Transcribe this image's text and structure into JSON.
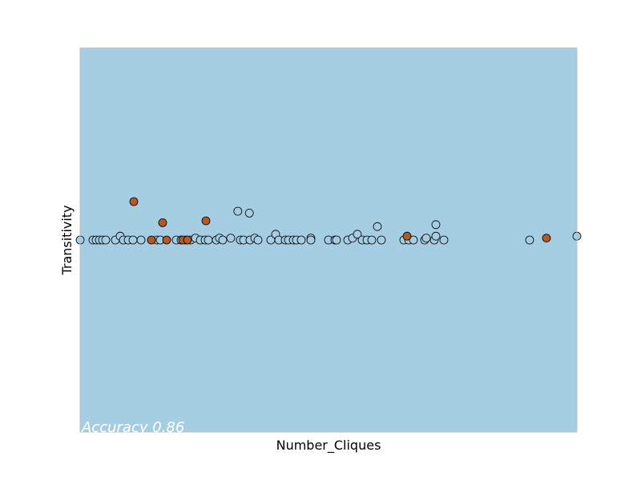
{
  "chart_data": {
    "type": "scatter",
    "xlabel": "Number_Cliques",
    "ylabel": "Transitivity",
    "annotation": "Accuracy 0.86",
    "xlim": [
      0,
      31
    ],
    "ylim": [
      -1,
      1
    ],
    "background_color": "#a6cee3",
    "grid": false,
    "legend": "none",
    "series": [
      {
        "color": "#a6cee3",
        "points": [
          [
            0.0,
            0.0
          ],
          [
            0.8,
            0.0
          ],
          [
            1.0,
            0.0
          ],
          [
            1.2,
            0.0
          ],
          [
            1.4,
            0.0
          ],
          [
            1.6,
            0.0
          ],
          [
            2.2,
            0.0
          ],
          [
            2.5,
            0.02
          ],
          [
            2.7,
            0.0
          ],
          [
            3.0,
            0.0
          ],
          [
            3.3,
            0.0
          ],
          [
            3.8,
            0.0
          ],
          [
            4.8,
            0.0
          ],
          [
            5.0,
            0.0
          ],
          [
            6.0,
            0.0
          ],
          [
            6.3,
            0.0
          ],
          [
            6.6,
            0.0
          ],
          [
            6.9,
            0.0
          ],
          [
            7.2,
            0.01
          ],
          [
            7.5,
            0.0
          ],
          [
            7.8,
            0.0
          ],
          [
            8.0,
            0.0
          ],
          [
            8.5,
            0.0
          ],
          [
            8.7,
            0.01
          ],
          [
            8.9,
            0.0
          ],
          [
            9.4,
            0.01
          ],
          [
            9.84,
            0.15
          ],
          [
            10.0,
            0.0
          ],
          [
            10.2,
            0.0
          ],
          [
            10.56,
            0.14
          ],
          [
            10.6,
            0.0
          ],
          [
            10.9,
            0.01
          ],
          [
            11.1,
            0.0
          ],
          [
            11.9,
            0.0
          ],
          [
            12.2,
            0.03
          ],
          [
            12.4,
            0.0
          ],
          [
            12.8,
            0.0
          ],
          [
            13.0,
            0.0
          ],
          [
            13.3,
            0.0
          ],
          [
            13.5,
            0.0
          ],
          [
            13.8,
            0.0
          ],
          [
            14.4,
            0.01
          ],
          [
            14.4,
            0.0
          ],
          [
            15.5,
            0.0
          ],
          [
            15.9,
            0.0
          ],
          [
            16.0,
            0.0
          ],
          [
            16.7,
            0.0
          ],
          [
            17.0,
            0.01
          ],
          [
            17.3,
            0.03
          ],
          [
            17.6,
            0.0
          ],
          [
            17.9,
            0.0
          ],
          [
            18.2,
            0.0
          ],
          [
            18.55,
            0.07
          ],
          [
            18.8,
            0.0
          ],
          [
            20.2,
            0.0
          ],
          [
            20.5,
            0.0
          ],
          [
            20.8,
            0.0
          ],
          [
            21.5,
            0.0
          ],
          [
            21.6,
            0.01
          ],
          [
            22.1,
            0.0
          ],
          [
            22.2,
            0.02
          ],
          [
            22.2,
            0.08
          ],
          [
            22.7,
            0.0
          ],
          [
            28.05,
            0.0
          ],
          [
            31.0,
            0.02
          ]
        ]
      },
      {
        "color": "#b15928",
        "points": [
          [
            3.35,
            0.2
          ],
          [
            5.15,
            0.09
          ],
          [
            7.85,
            0.1
          ],
          [
            4.45,
            0.0
          ],
          [
            5.4,
            0.0
          ],
          [
            6.4,
            0.0
          ],
          [
            6.7,
            0.0
          ],
          [
            20.4,
            0.02
          ],
          [
            29.1,
            0.01
          ]
        ]
      }
    ]
  }
}
